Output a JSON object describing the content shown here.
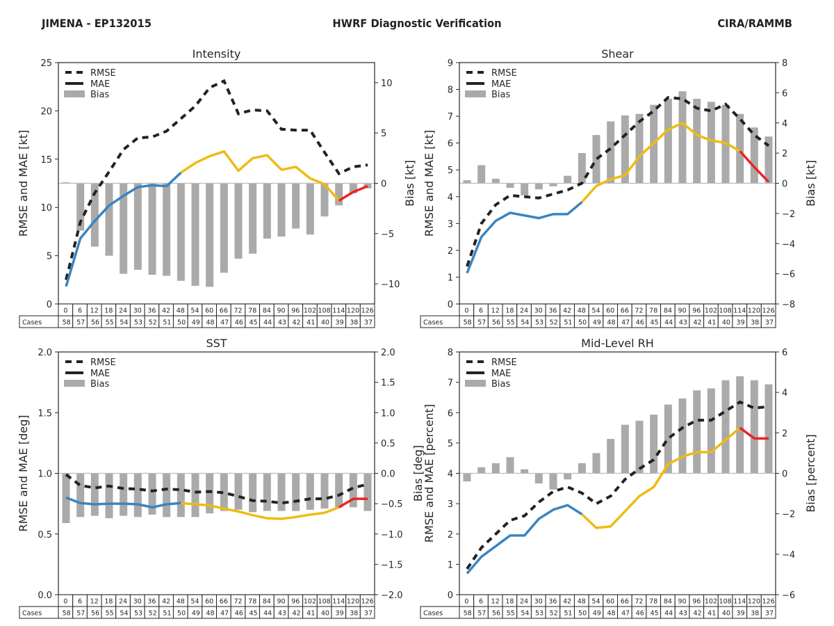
{
  "header": {
    "storm": "JIMENA - EP132015",
    "title": "HWRF Diagnostic Verification",
    "org": "CIRA/RAMMB"
  },
  "colors": {
    "rmse": "#222222",
    "bias_bar": "#aaaaaa",
    "zero_line": "#bbbbbb",
    "mae_early": "#3a84c0",
    "mae_mid": "#eebb11",
    "mae_late": "#ee2222"
  },
  "legend": [
    "RMSE",
    "MAE",
    "Bias"
  ],
  "cases_label": "Cases",
  "forecast_hours": [
    0,
    6,
    12,
    18,
    24,
    30,
    36,
    42,
    48,
    54,
    60,
    66,
    72,
    78,
    84,
    90,
    96,
    102,
    108,
    114,
    120,
    126
  ],
  "cases": [
    58,
    57,
    56,
    55,
    54,
    53,
    52,
    51,
    50,
    49,
    48,
    47,
    46,
    45,
    44,
    43,
    42,
    41,
    40,
    39,
    38,
    37
  ],
  "mae_color_breaks": {
    "early_end_hour": 48,
    "mid_end_hour": 114
  },
  "chart_data": [
    {
      "type": "line",
      "title": "Intensity",
      "ylabel": "RMSE and MAE [kt]",
      "y2label": "Bias [kt]",
      "ylim": [
        0,
        25
      ],
      "yticks": [
        0,
        5,
        10,
        15,
        20,
        25
      ],
      "y2lim": [
        -12,
        12
      ],
      "y2ticks": [
        -10,
        -5,
        0,
        5,
        10
      ],
      "legend": "top-left",
      "series": [
        {
          "name": "RMSE",
          "values": [
            2.5,
            8.5,
            11.5,
            13.7,
            16.0,
            17.2,
            17.3,
            17.9,
            19.2,
            20.5,
            22.4,
            23.1,
            19.7,
            20.1,
            20.0,
            18.1,
            18.0,
            18.0,
            15.7,
            13.5,
            14.2,
            14.4
          ]
        },
        {
          "name": "MAE",
          "values": [
            1.8,
            6.8,
            8.6,
            10.2,
            11.2,
            12.1,
            12.3,
            12.2,
            13.6,
            14.6,
            15.3,
            15.8,
            13.8,
            15.1,
            15.4,
            13.9,
            14.2,
            13.0,
            12.4,
            10.7,
            11.6,
            12.2
          ]
        },
        {
          "name": "Bias",
          "axis": "right",
          "values": [
            0.1,
            -4.7,
            -6.3,
            -7.2,
            -9.0,
            -8.6,
            -9.1,
            -9.2,
            -9.7,
            -10.2,
            -10.3,
            -8.9,
            -7.5,
            -7.0,
            -5.5,
            -5.3,
            -4.5,
            -5.1,
            -3.3,
            -2.2,
            -1.0,
            -0.5
          ]
        }
      ]
    },
    {
      "type": "line",
      "title": "Shear",
      "ylabel": "RMSE and MAE [kt]",
      "y2label": "Bias [kt]",
      "ylim": [
        0,
        9
      ],
      "yticks": [
        0,
        1,
        2,
        3,
        4,
        5,
        6,
        7,
        8,
        9
      ],
      "y2lim": [
        -8,
        8
      ],
      "y2ticks": [
        -8,
        -6,
        -4,
        -2,
        0,
        2,
        4,
        6,
        8
      ],
      "legend": "top-left",
      "series": [
        {
          "name": "RMSE",
          "values": [
            1.4,
            3.0,
            3.7,
            4.05,
            4.0,
            3.95,
            4.1,
            4.25,
            4.5,
            5.4,
            5.8,
            6.3,
            6.8,
            7.2,
            7.7,
            7.65,
            7.3,
            7.2,
            7.45,
            6.9,
            6.3,
            5.9
          ]
        },
        {
          "name": "MAE",
          "values": [
            1.15,
            2.5,
            3.1,
            3.4,
            3.3,
            3.2,
            3.35,
            3.35,
            3.8,
            4.4,
            4.65,
            4.8,
            5.5,
            6.0,
            6.5,
            6.75,
            6.3,
            6.1,
            6.0,
            5.7,
            5.1,
            4.55
          ]
        },
        {
          "name": "Bias",
          "axis": "right",
          "values": [
            0.2,
            1.2,
            0.3,
            -0.3,
            -0.8,
            -0.4,
            -0.2,
            0.5,
            2.0,
            3.2,
            4.1,
            4.5,
            4.6,
            5.2,
            5.6,
            6.1,
            5.6,
            5.4,
            5.2,
            4.6,
            3.7,
            3.1
          ]
        }
      ]
    },
    {
      "type": "line",
      "title": "SST",
      "ylabel": "RMSE and MAE [deg]",
      "y2label": "Bias [deg]",
      "ylim": [
        0,
        2
      ],
      "yticks": [
        0.0,
        0.5,
        1.0,
        1.5,
        2.0
      ],
      "y2lim": [
        -2,
        2
      ],
      "y2ticks": [
        -2.0,
        -1.5,
        -1.0,
        -0.5,
        0.0,
        0.5,
        1.0,
        1.5,
        2.0
      ],
      "legend": "top-left",
      "series": [
        {
          "name": "RMSE",
          "values": [
            0.99,
            0.9,
            0.88,
            0.895,
            0.875,
            0.87,
            0.855,
            0.87,
            0.865,
            0.845,
            0.85,
            0.84,
            0.81,
            0.775,
            0.77,
            0.755,
            0.77,
            0.79,
            0.79,
            0.82,
            0.88,
            0.91
          ]
        },
        {
          "name": "MAE",
          "values": [
            0.8,
            0.755,
            0.745,
            0.75,
            0.75,
            0.745,
            0.72,
            0.745,
            0.755,
            0.745,
            0.735,
            0.71,
            0.685,
            0.655,
            0.63,
            0.625,
            0.64,
            0.66,
            0.675,
            0.72,
            0.79,
            0.79
          ]
        },
        {
          "name": "Bias",
          "axis": "right",
          "values": [
            -0.82,
            -0.72,
            -0.7,
            -0.74,
            -0.7,
            -0.72,
            -0.68,
            -0.72,
            -0.72,
            -0.72,
            -0.66,
            -0.62,
            -0.6,
            -0.64,
            -0.62,
            -0.62,
            -0.62,
            -0.6,
            -0.58,
            -0.56,
            -0.56,
            -0.62
          ]
        }
      ]
    },
    {
      "type": "line",
      "title": "Mid-Level RH",
      "ylabel": "RMSE and MAE [percent]",
      "y2label": "Bias [percent]",
      "ylim": [
        0,
        8
      ],
      "yticks": [
        0,
        1,
        2,
        3,
        4,
        5,
        6,
        7,
        8
      ],
      "y2lim": [
        -6,
        6
      ],
      "y2ticks": [
        -6,
        -4,
        -2,
        0,
        2,
        4,
        6
      ],
      "legend": "top-left",
      "series": [
        {
          "name": "RMSE",
          "values": [
            0.85,
            1.55,
            2.0,
            2.45,
            2.6,
            3.05,
            3.4,
            3.55,
            3.35,
            3.0,
            3.25,
            3.8,
            4.15,
            4.45,
            5.15,
            5.5,
            5.75,
            5.75,
            6.05,
            6.35,
            6.15,
            6.2
          ]
        },
        {
          "name": "MAE",
          "values": [
            0.7,
            1.25,
            1.6,
            1.95,
            1.95,
            2.5,
            2.8,
            2.95,
            2.65,
            2.2,
            2.25,
            2.75,
            3.25,
            3.55,
            4.3,
            4.55,
            4.7,
            4.7,
            5.1,
            5.5,
            5.15,
            5.15
          ]
        },
        {
          "name": "Bias",
          "axis": "right",
          "values": [
            -0.4,
            0.3,
            0.5,
            0.8,
            0.2,
            -0.5,
            -0.8,
            -0.3,
            0.5,
            1.0,
            1.7,
            2.4,
            2.6,
            2.9,
            3.4,
            3.7,
            4.1,
            4.2,
            4.6,
            4.8,
            4.6,
            4.4
          ]
        }
      ]
    }
  ]
}
